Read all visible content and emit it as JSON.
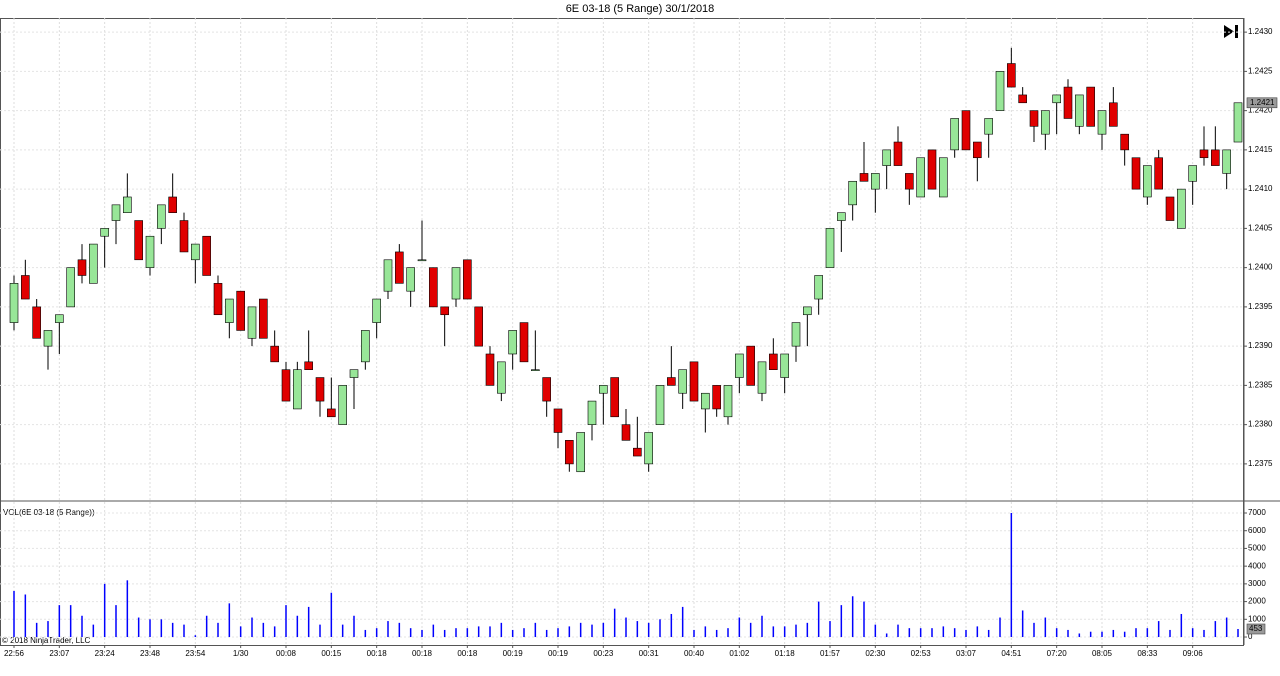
{
  "chart_data": [
    {
      "type": "candlestick",
      "title": "6E 03-18 (5 Range)  30/1/2018",
      "categories": [
        "22:56",
        null,
        null,
        null,
        "23:07",
        null,
        null,
        null,
        "23:24",
        null,
        null,
        null,
        "23:48",
        null,
        null,
        null,
        "23:54",
        null,
        null,
        null,
        "1/30",
        null,
        null,
        null,
        "00:08",
        null,
        null,
        null,
        "00:15",
        null,
        null,
        null,
        "00:18",
        null,
        null,
        null,
        "00:18",
        null,
        null,
        null,
        "00:18",
        null,
        null,
        null,
        "00:19",
        null,
        null,
        null,
        "00:19",
        null,
        null,
        null,
        "00:23",
        null,
        null,
        null,
        "00:31",
        null,
        null,
        null,
        "00:40",
        null,
        null,
        null,
        "01:02",
        null,
        null,
        null,
        "01:18",
        null,
        null,
        null,
        "01:57",
        null,
        null,
        null,
        "02:30",
        null,
        null,
        null,
        "02:53",
        null,
        null,
        null,
        "03:07",
        null,
        null,
        null,
        "04:51",
        null,
        null,
        null,
        "07:20",
        null,
        null,
        null,
        "08:05",
        null,
        null,
        null,
        "08:33",
        null,
        null,
        null,
        "09:06",
        null,
        null,
        null,
        null
      ],
      "open": [
        1.2393,
        1.2399,
        1.2395,
        1.239,
        1.2393,
        1.2395,
        1.2401,
        1.2398,
        1.2404,
        1.2406,
        1.2407,
        1.2406,
        1.24,
        1.2405,
        1.2409,
        1.2406,
        1.2401,
        1.2404,
        1.2398,
        1.2393,
        1.2397,
        1.2391,
        1.2396,
        1.239,
        1.2387,
        1.2382,
        1.2388,
        1.2386,
        1.2382,
        1.238,
        1.2386,
        1.2388,
        1.2393,
        1.2397,
        1.2402,
        1.2397,
        1.2401,
        1.24,
        1.2395,
        1.2396,
        1.2401,
        1.2395,
        1.2389,
        1.2384,
        1.2389,
        1.2393,
        1.2387,
        1.2386,
        1.2382,
        1.2378,
        1.2374,
        1.238,
        1.2384,
        1.2386,
        1.238,
        1.2377,
        1.2375,
        1.238,
        1.2386,
        1.2384,
        1.2388,
        1.2382,
        1.2385,
        1.2381,
        1.2386,
        1.239,
        1.2384,
        1.2389,
        1.2386,
        1.239,
        1.2394,
        1.2396,
        1.24,
        1.2406,
        1.2408,
        1.2412,
        1.241,
        1.2413,
        1.2416,
        1.2412,
        1.2409,
        1.2415,
        1.2409,
        1.2415,
        1.242,
        1.2416,
        1.2417,
        1.242,
        1.2426,
        1.2422,
        1.242,
        1.2417,
        1.2421,
        1.2423,
        1.2418,
        1.2423,
        1.2417,
        1.2421,
        1.2417,
        1.2414,
        1.2409,
        1.2414,
        1.2409,
        1.2405,
        1.2411,
        1.2415,
        1.2415,
        1.2412,
        1.2416
      ],
      "high": [
        1.2399,
        1.2401,
        1.2396,
        1.2392,
        1.2394,
        1.24,
        1.2403,
        1.2403,
        1.2405,
        1.2408,
        1.2412,
        1.2406,
        1.2404,
        1.2408,
        1.2412,
        1.2407,
        1.2403,
        1.2404,
        1.2399,
        1.2396,
        1.2397,
        1.2395,
        1.2396,
        1.2392,
        1.2388,
        1.2388,
        1.2392,
        1.2386,
        1.2386,
        1.2385,
        1.2387,
        1.2392,
        1.2396,
        1.2401,
        1.2403,
        1.24,
        1.2406,
        1.24,
        1.2395,
        1.24,
        1.2401,
        1.2395,
        1.239,
        1.2388,
        1.2392,
        1.2393,
        1.2392,
        1.2386,
        1.2382,
        1.2378,
        1.2379,
        1.2383,
        1.2385,
        1.2386,
        1.2382,
        1.2381,
        1.2379,
        1.2385,
        1.239,
        1.2387,
        1.2388,
        1.2384,
        1.2385,
        1.2385,
        1.2389,
        1.239,
        1.2388,
        1.2391,
        1.2389,
        1.2393,
        1.2395,
        1.2399,
        1.2405,
        1.2407,
        1.2411,
        1.2416,
        1.2412,
        1.2415,
        1.2418,
        1.2412,
        1.2414,
        1.2415,
        1.2414,
        1.2419,
        1.242,
        1.2416,
        1.2419,
        1.2425,
        1.2428,
        1.2423,
        1.242,
        1.242,
        1.2422,
        1.2424,
        1.2422,
        1.2423,
        1.242,
        1.2423,
        1.2417,
        1.2414,
        1.2413,
        1.2415,
        1.2409,
        1.241,
        1.2413,
        1.2418,
        1.2418,
        1.2415,
        1.2421
      ],
      "low": [
        1.2392,
        1.2396,
        1.2391,
        1.2387,
        1.2389,
        1.2395,
        1.2398,
        1.2398,
        1.24,
        1.2403,
        1.2407,
        1.2401,
        1.2399,
        1.2403,
        1.2407,
        1.2402,
        1.2398,
        1.2399,
        1.2394,
        1.2391,
        1.2392,
        1.239,
        1.2391,
        1.2388,
        1.2383,
        1.2382,
        1.2387,
        1.2381,
        1.2381,
        1.238,
        1.2382,
        1.2387,
        1.2391,
        1.2396,
        1.2398,
        1.2395,
        1.2401,
        1.2395,
        1.239,
        1.2395,
        1.2396,
        1.239,
        1.2385,
        1.2383,
        1.2387,
        1.2388,
        1.2387,
        1.2381,
        1.2377,
        1.2374,
        1.2374,
        1.2378,
        1.238,
        1.2381,
        1.2378,
        1.2376,
        1.2374,
        1.238,
        1.2385,
        1.2382,
        1.2383,
        1.2379,
        1.2381,
        1.238,
        1.2384,
        1.2385,
        1.2383,
        1.2387,
        1.2384,
        1.2388,
        1.239,
        1.2394,
        1.24,
        1.2402,
        1.2406,
        1.2411,
        1.2407,
        1.241,
        1.2413,
        1.2408,
        1.2409,
        1.241,
        1.2409,
        1.2414,
        1.2415,
        1.2411,
        1.2414,
        1.242,
        1.2423,
        1.2421,
        1.2416,
        1.2415,
        1.2417,
        1.2419,
        1.2417,
        1.2418,
        1.2415,
        1.2418,
        1.2413,
        1.241,
        1.2408,
        1.241,
        1.2406,
        1.2405,
        1.2408,
        1.2413,
        1.2413,
        1.241,
        1.2416
      ],
      "close": [
        1.2398,
        1.2396,
        1.2391,
        1.2392,
        1.2394,
        1.24,
        1.2399,
        1.2403,
        1.2405,
        1.2408,
        1.2409,
        1.2401,
        1.2404,
        1.2408,
        1.2407,
        1.2402,
        1.2403,
        1.2399,
        1.2394,
        1.2396,
        1.2392,
        1.2395,
        1.2391,
        1.2388,
        1.2383,
        1.2387,
        1.2387,
        1.2383,
        1.2381,
        1.2385,
        1.2387,
        1.2392,
        1.2396,
        1.2401,
        1.2398,
        1.24,
        1.2401,
        1.2395,
        1.2394,
        1.24,
        1.2396,
        1.239,
        1.2385,
        1.2388,
        1.2392,
        1.2388,
        1.2387,
        1.2383,
        1.2379,
        1.2375,
        1.2379,
        1.2383,
        1.2385,
        1.2381,
        1.2378,
        1.2376,
        1.2379,
        1.2385,
        1.2385,
        1.2387,
        1.2383,
        1.2384,
        1.2382,
        1.2385,
        1.2389,
        1.2385,
        1.2388,
        1.2387,
        1.2389,
        1.2393,
        1.2395,
        1.2399,
        1.2405,
        1.2407,
        1.2411,
        1.2411,
        1.2412,
        1.2415,
        1.2413,
        1.241,
        1.2414,
        1.241,
        1.2414,
        1.2419,
        1.2415,
        1.2414,
        1.2419,
        1.2425,
        1.2423,
        1.2421,
        1.2418,
        1.242,
        1.2422,
        1.2419,
        1.2422,
        1.2418,
        1.242,
        1.2418,
        1.2415,
        1.241,
        1.2413,
        1.241,
        1.2406,
        1.241,
        1.2413,
        1.2414,
        1.2413,
        1.2415,
        1.2421
      ],
      "up_color": "#98e698",
      "down_color": "#e00000",
      "ylim": [
        1.23704,
        1.24318
      ],
      "yticks": [
        1.2375,
        {
          "value": 1.238,
          "label": "1.2380"
        },
        1.2385,
        {
          "value": 1.239,
          "label": "1.2390"
        },
        1.2395,
        {
          "value": 1.24,
          "label": "1.2400"
        },
        1.2405,
        {
          "value": 1.241,
          "label": "1.2410"
        },
        1.2415,
        {
          "value": 1.242,
          "label": "1.2420"
        },
        1.2425,
        {
          "value": 1.243,
          "label": "1.2430"
        }
      ],
      "last_price": 1.2421,
      "grid": true
    },
    {
      "type": "bar",
      "title": "VOL(6E 03-18 (5 Range))",
      "note": "© 2018 NinjaTrader, LLC",
      "color": "#0000ff",
      "values": [
        2600,
        2400,
        800,
        900,
        1800,
        1800,
        1200,
        700,
        3000,
        1800,
        3200,
        1100,
        1000,
        1000,
        800,
        700,
        100,
        1200,
        800,
        1900,
        600,
        1100,
        800,
        600,
        1800,
        1200,
        1700,
        700,
        2500,
        700,
        1200,
        400,
        500,
        900,
        800,
        500,
        400,
        700,
        400,
        500,
        500,
        600,
        600,
        800,
        400,
        500,
        800,
        400,
        500,
        600,
        800,
        700,
        800,
        1600,
        1100,
        900,
        800,
        1000,
        1300,
        1700,
        400,
        600,
        400,
        500,
        1100,
        800,
        1200,
        600,
        600,
        700,
        800,
        2000,
        900,
        1800,
        2300,
        2000,
        700,
        200,
        700,
        500,
        500,
        500,
        600,
        500,
        400,
        600,
        400,
        1100,
        7000,
        1500,
        800,
        1100,
        500,
        400,
        200,
        300,
        300,
        400,
        300,
        500,
        500,
        900,
        400,
        1300,
        500,
        400,
        900,
        1100,
        453
      ],
      "ylim": [
        -450,
        7620
      ],
      "yticks": [
        0,
        1000,
        2000,
        3000,
        4000,
        5000,
        6000,
        7000
      ],
      "last_value": 453,
      "grid": true
    }
  ]
}
